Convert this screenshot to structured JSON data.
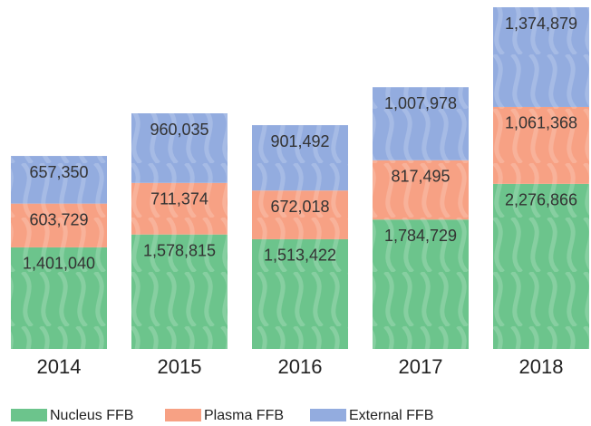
{
  "chart_data": {
    "type": "bar",
    "stacked": true,
    "categories": [
      "2014",
      "2015",
      "2016",
      "2017",
      "2018"
    ],
    "series": [
      {
        "name": "Nucleus FFB",
        "color": "#6cc48c",
        "values": [
          1401040,
          1578815,
          1513422,
          1784729,
          2276866
        ],
        "value_labels": [
          "1,401,040",
          "1,578,815",
          "1,513,422",
          "1,784,729",
          "2,276,866"
        ]
      },
      {
        "name": "Plasma FFB",
        "color": "#f7a184",
        "values": [
          603729,
          711374,
          672018,
          817495,
          1061368
        ],
        "value_labels": [
          "603,729",
          "711,374",
          "672,018",
          "817,495",
          "1,061,368"
        ]
      },
      {
        "name": "External FFB",
        "color": "#93acdf",
        "values": [
          657350,
          960035,
          901492,
          1007978,
          1374879
        ],
        "value_labels": [
          "657,350",
          "960,035",
          "901,492",
          "1,007,978",
          "1,374,879"
        ]
      }
    ]
  }
}
